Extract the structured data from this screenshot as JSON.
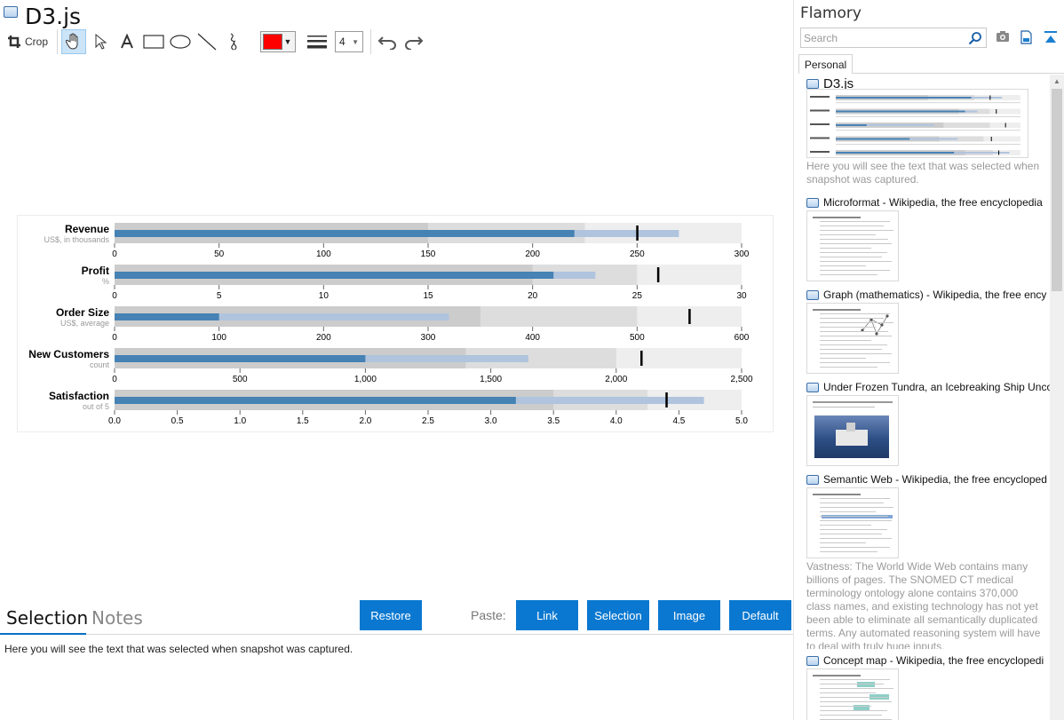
{
  "window": {
    "title": "D3.js"
  },
  "toolbar": {
    "crop_label": "Crop",
    "tools": [
      "crop-icon",
      "hand-icon",
      "pointer-icon",
      "text-icon",
      "rectangle-icon",
      "ellipse-icon",
      "line-icon",
      "freehand-icon"
    ],
    "color": "#ff0000",
    "line_width": "4",
    "undo_icon": "undo-icon",
    "redo_icon": "redo-icon"
  },
  "chart_data": {
    "type": "bullet",
    "bars": [
      {
        "title": "Revenue",
        "subtitle": "US$, in thousands",
        "ranges": [
          150,
          225,
          300
        ],
        "measures": [
          220,
          270
        ],
        "marker": 250,
        "ticks": [
          "0",
          "50",
          "100",
          "150",
          "200",
          "250",
          "300"
        ],
        "max": 300
      },
      {
        "title": "Profit",
        "subtitle": "%",
        "ranges": [
          20,
          25,
          30
        ],
        "measures": [
          21,
          23
        ],
        "marker": 26,
        "ticks": [
          "0",
          "5",
          "10",
          "15",
          "20",
          "25",
          "30"
        ],
        "max": 30
      },
      {
        "title": "Order Size",
        "subtitle": "US$, average",
        "ranges": [
          350,
          500,
          600
        ],
        "measures": [
          100,
          320
        ],
        "marker": 550,
        "ticks": [
          "0",
          "100",
          "200",
          "300",
          "400",
          "500",
          "600"
        ],
        "max": 600
      },
      {
        "title": "New Customers",
        "subtitle": "count",
        "ranges": [
          1400,
          2000,
          2500
        ],
        "measures": [
          1000,
          1650
        ],
        "marker": 2100,
        "ticks": [
          "0",
          "500",
          "1,000",
          "1,500",
          "2,000",
          "2,500"
        ],
        "max": 2500
      },
      {
        "title": "Satisfaction",
        "subtitle": "out of 5",
        "ranges": [
          3.5,
          4.25,
          5
        ],
        "measures": [
          3.2,
          4.7
        ],
        "marker": 4.4,
        "ticks": [
          "0.0",
          "0.5",
          "1.0",
          "1.5",
          "2.0",
          "2.5",
          "3.0",
          "3.5",
          "4.0",
          "4.5",
          "5.0"
        ],
        "max": 5
      }
    ],
    "colors": {
      "range_light": "#eeeeee",
      "range_mid": "#dddddd",
      "range_dark": "#cccccc",
      "measure_light": "#b0c4de",
      "measure_dark": "#4682b4",
      "marker": "#000000"
    }
  },
  "bottom": {
    "tab_selection": "Selection",
    "tab_notes": "Notes",
    "restore": "Restore",
    "paste_label": "Paste:",
    "paste_link": "Link",
    "paste_selection": "Selection",
    "paste_image": "Image",
    "paste_default": "Default",
    "selection_text": "Here you will see the text that was selected when snapshot was captured."
  },
  "sidebar": {
    "brand": "Flamory",
    "search_placeholder": "Search",
    "tab": "Personal",
    "snapshots": [
      {
        "title": "D3.js",
        "desc": "Here you will see the text that was selected when snapshot was captured."
      },
      {
        "title": "Microformat - Wikipedia, the free encyclopedia",
        "desc": ""
      },
      {
        "title": "Graph (mathematics) - Wikipedia, the free ency",
        "desc": ""
      },
      {
        "title": "Under Frozen Tundra, an Icebreaking Ship Unco",
        "desc": ""
      },
      {
        "title": "Semantic Web - Wikipedia, the free encycloped",
        "desc": "Vastness: The World Wide Web contains many billions of pages. The SNOMED CT medical terminology ontology alone contains 370,000 class names, and existing technology has not yet been able to eliminate all semantically duplicated terms. Any automated reasoning system will have to deal with truly huge inputs."
      },
      {
        "title": "Concept map - Wikipedia, the free encyclopedi",
        "desc": ""
      }
    ]
  }
}
